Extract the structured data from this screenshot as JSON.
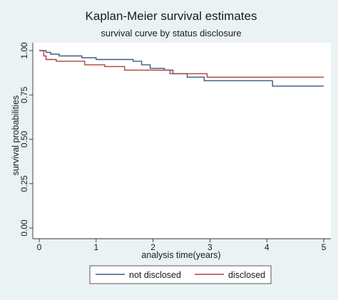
{
  "chart_data": {
    "type": "line",
    "title": "Kaplan-Meier survival estimates",
    "subtitle": "survival curve by status disclosure",
    "xlabel": "analysis time(years)",
    "ylabel": "survival probabilities",
    "xlim": [
      0,
      5
    ],
    "ylim": [
      0,
      1
    ],
    "xticks": [
      "0",
      "1",
      "2",
      "3",
      "4",
      "5"
    ],
    "yticks": [
      "0.00",
      "0.25",
      "0.50",
      "0.75",
      "1.00"
    ],
    "grid": false,
    "legend": "bottom",
    "series": [
      {
        "name": "not disclosed",
        "color": "#3d5a80",
        "step": [
          [
            0,
            1.0
          ],
          [
            0.12,
            1.0
          ],
          [
            0.12,
            0.99
          ],
          [
            0.2,
            0.99
          ],
          [
            0.2,
            0.98
          ],
          [
            0.35,
            0.98
          ],
          [
            0.35,
            0.97
          ],
          [
            0.75,
            0.97
          ],
          [
            0.75,
            0.96
          ],
          [
            1.0,
            0.96
          ],
          [
            1.0,
            0.95
          ],
          [
            1.65,
            0.95
          ],
          [
            1.65,
            0.94
          ],
          [
            1.8,
            0.94
          ],
          [
            1.8,
            0.92
          ],
          [
            1.95,
            0.92
          ],
          [
            1.95,
            0.9
          ],
          [
            2.2,
            0.9
          ],
          [
            2.2,
            0.89
          ],
          [
            2.35,
            0.89
          ],
          [
            2.35,
            0.87
          ],
          [
            2.6,
            0.87
          ],
          [
            2.6,
            0.85
          ],
          [
            2.9,
            0.85
          ],
          [
            2.9,
            0.83
          ],
          [
            4.1,
            0.83
          ],
          [
            4.1,
            0.8
          ],
          [
            5.0,
            0.8
          ]
        ]
      },
      {
        "name": "disclosed",
        "color": "#b0413e",
        "step": [
          [
            0,
            1.0
          ],
          [
            0.08,
            1.0
          ],
          [
            0.08,
            0.97
          ],
          [
            0.12,
            0.97
          ],
          [
            0.12,
            0.95
          ],
          [
            0.3,
            0.95
          ],
          [
            0.3,
            0.94
          ],
          [
            0.8,
            0.94
          ],
          [
            0.8,
            0.92
          ],
          [
            1.15,
            0.92
          ],
          [
            1.15,
            0.91
          ],
          [
            1.5,
            0.91
          ],
          [
            1.5,
            0.89
          ],
          [
            2.3,
            0.89
          ],
          [
            2.3,
            0.87
          ],
          [
            2.95,
            0.87
          ],
          [
            2.95,
            0.85
          ],
          [
            5.0,
            0.85
          ]
        ]
      }
    ]
  }
}
